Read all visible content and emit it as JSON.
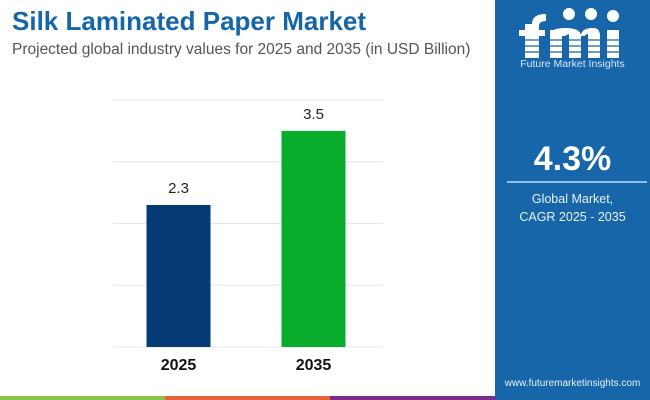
{
  "header": {
    "title": "Silk Laminated Paper Market",
    "subtitle": "Projected global industry values for 2025 and 2035 (in USD Billion)"
  },
  "chart_data": {
    "type": "bar",
    "categories": [
      "2025",
      "2035"
    ],
    "values": [
      2.3,
      3.5
    ],
    "data_labels": [
      "2.3",
      "3.5"
    ],
    "colors": [
      "#043a75",
      "#0aac2e"
    ],
    "ylim": [
      0,
      4
    ],
    "grid": true,
    "xlabel": "",
    "ylabel": ""
  },
  "sidebar": {
    "brand": "fmi",
    "brand_name": "Future Market Insights",
    "cagr_value": "4.3%",
    "cagr_label_line1": "Global Market,",
    "cagr_label_line2": "CAGR 2025 - 2035",
    "url": "www.futuremarketinsights.com",
    "background": "#1766aa"
  },
  "footer_strip_colors": [
    "#8bc34a",
    "#e8623a",
    "#7b2d8c"
  ]
}
